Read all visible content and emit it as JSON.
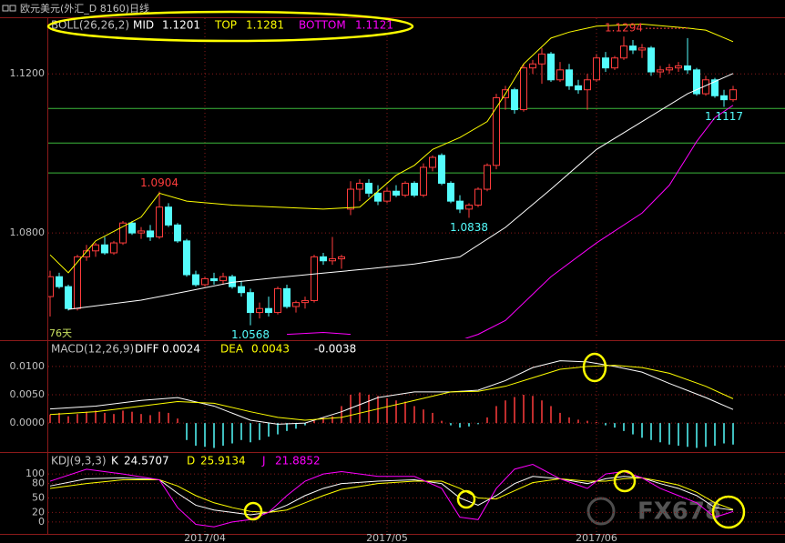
{
  "window_title": "欧元美元(外汇_D 8160)日线",
  "watermark": "FX678",
  "chart_data": [
    {
      "type": "candlestick",
      "indicator": "BOLL(26,26,2)",
      "categories": [
        null,
        null,
        null,
        null,
        null,
        null,
        null,
        null,
        null,
        null,
        null,
        null,
        null,
        null,
        null,
        null,
        null,
        "2017/04",
        null,
        null,
        null,
        null,
        null,
        null,
        null,
        null,
        null,
        null,
        null,
        null,
        null,
        null,
        null,
        null,
        null,
        null,
        null,
        "2017/05",
        null,
        null,
        null,
        null,
        null,
        null,
        null,
        null,
        null,
        null,
        null,
        null,
        null,
        null,
        null,
        null,
        null,
        null,
        null,
        null,
        null,
        null,
        "2017/06",
        null,
        null,
        null,
        null,
        null,
        null,
        null,
        null,
        null,
        null,
        null,
        null,
        null,
        null,
        null
      ],
      "open": [
        1.064,
        1.069,
        1.0665,
        1.061,
        1.074,
        1.0755,
        1.077,
        1.075,
        1.0775,
        1.0825,
        1.08,
        1.0805,
        1.079,
        1.0865,
        1.082,
        1.078,
        1.0695,
        1.067,
        1.0685,
        1.068,
        1.069,
        1.0665,
        1.065,
        1.06,
        1.061,
        1.06,
        1.066,
        1.0615,
        1.0625,
        1.063,
        1.074,
        1.073,
        1.0735,
        1.086,
        1.091,
        1.0925,
        1.09,
        1.088,
        1.0905,
        1.0895,
        1.0925,
        1.0895,
        1.0965,
        1.0995,
        1.0925,
        1.088,
        1.086,
        1.087,
        1.091,
        1.097,
        1.114,
        1.116,
        1.111,
        1.1215,
        1.1225,
        1.125,
        1.1185,
        1.121,
        1.117,
        1.116,
        1.1185,
        1.124,
        1.1215,
        1.124,
        1.127,
        1.126,
        1.1265,
        1.1205,
        1.121,
        1.1215,
        1.122,
        1.121,
        1.115,
        1.1185,
        1.1145,
        1.1135
      ],
      "high": [
        1.0705,
        1.07,
        1.067,
        1.0745,
        1.077,
        1.0775,
        1.079,
        1.078,
        1.083,
        1.083,
        1.0815,
        1.082,
        1.0904,
        1.0875,
        1.0825,
        1.0785,
        1.0705,
        1.069,
        1.07,
        1.07,
        1.0695,
        1.068,
        1.066,
        1.0625,
        1.064,
        1.0665,
        1.067,
        1.063,
        1.064,
        1.0745,
        1.075,
        1.079,
        1.0745,
        1.093,
        1.0935,
        1.0935,
        1.092,
        1.0915,
        1.092,
        1.093,
        1.093,
        1.0975,
        1.0995,
        1.1,
        1.093,
        1.0895,
        1.0875,
        1.0915,
        1.0975,
        1.115,
        1.117,
        1.1165,
        1.1225,
        1.1235,
        1.1265,
        1.1255,
        1.123,
        1.1225,
        1.1185,
        1.12,
        1.125,
        1.1255,
        1.1245,
        1.1294,
        1.1285,
        1.1275,
        1.127,
        1.122,
        1.1225,
        1.123,
        1.129,
        1.1215,
        1.1195,
        1.119,
        1.116,
        1.117
      ],
      "low": [
        1.059,
        1.066,
        1.0605,
        1.0605,
        1.073,
        1.074,
        1.0745,
        1.0745,
        1.077,
        1.0795,
        1.0785,
        1.078,
        1.0785,
        1.0815,
        1.0775,
        1.069,
        1.0665,
        1.0665,
        1.067,
        1.067,
        1.066,
        1.064,
        1.0568,
        1.0585,
        1.059,
        1.0595,
        1.061,
        1.06,
        1.061,
        1.0625,
        1.072,
        1.072,
        1.071,
        1.0845,
        1.088,
        1.089,
        1.087,
        1.0875,
        1.089,
        1.089,
        1.089,
        1.089,
        1.0955,
        1.092,
        1.0875,
        1.085,
        1.0838,
        1.0865,
        1.0905,
        1.096,
        1.111,
        1.11,
        1.1105,
        1.12,
        1.1175,
        1.118,
        1.118,
        1.116,
        1.115,
        1.111,
        1.118,
        1.1205,
        1.121,
        1.1235,
        1.125,
        1.124,
        1.1195,
        1.119,
        1.12,
        1.1205,
        1.12,
        1.1145,
        1.1145,
        1.114,
        1.1117,
        1.113
      ],
      "close": [
        1.069,
        1.0665,
        1.061,
        1.074,
        1.0755,
        1.077,
        1.075,
        1.0775,
        1.0825,
        1.08,
        1.0805,
        1.079,
        1.0865,
        1.082,
        1.078,
        1.0695,
        1.067,
        1.0685,
        1.068,
        1.069,
        1.0665,
        1.065,
        1.06,
        1.061,
        1.06,
        1.066,
        1.0615,
        1.0625,
        1.063,
        1.074,
        1.073,
        1.0735,
        1.074,
        1.091,
        1.0925,
        1.09,
        1.088,
        1.0905,
        1.0895,
        1.0925,
        1.0895,
        1.0965,
        1.099,
        1.0925,
        1.088,
        1.086,
        1.087,
        1.091,
        1.097,
        1.114,
        1.116,
        1.111,
        1.1215,
        1.1225,
        1.125,
        1.1185,
        1.121,
        1.117,
        1.116,
        1.1185,
        1.124,
        1.1215,
        1.124,
        1.127,
        1.126,
        1.1265,
        1.1205,
        1.121,
        1.1215,
        1.122,
        1.121,
        1.115,
        1.1185,
        1.1145,
        1.1135,
        1.116
      ],
      "up_color": "#ff3c3c",
      "down_color": "#54fcfc",
      "series": [
        {
          "name": "MID",
          "color": "#ffffff",
          "x": [
            2,
            10,
            15,
            20,
            25,
            30,
            35,
            40,
            45,
            50,
            55,
            60,
            65,
            70,
            75
          ],
          "values": [
            1.0608,
            1.0631,
            1.0653,
            1.0676,
            1.0688,
            1.0699,
            1.071,
            1.0722,
            1.074,
            1.0814,
            1.091,
            1.101,
            1.108,
            1.115,
            1.1201
          ]
        },
        {
          "name": "TOP",
          "color": "#ffff00",
          "x": [
            0,
            2,
            5,
            10,
            12,
            15,
            20,
            25,
            30,
            34,
            38,
            40,
            42,
            45,
            48,
            50,
            52,
            55,
            57,
            60,
            65,
            70,
            72,
            75
          ],
          "values": [
            1.0745,
            1.07,
            1.078,
            1.084,
            1.09,
            1.088,
            1.087,
            1.0865,
            1.086,
            1.0865,
            1.0945,
            1.097,
            1.101,
            1.104,
            1.108,
            1.115,
            1.1225,
            1.129,
            1.1305,
            1.132,
            1.1325,
            1.1315,
            1.131,
            1.1281
          ]
        },
        {
          "name": "BOTTOM",
          "color": "#ff00ff",
          "x": [
            26,
            30,
            33,
            38,
            45,
            47,
            50,
            55,
            60,
            65,
            68,
            71,
            73,
            75
          ],
          "values": [
            1.0545,
            1.055,
            1.0545,
            null,
            1.053,
            1.0545,
            1.058,
            1.069,
            1.0775,
            1.085,
            1.092,
            1.103,
            1.109,
            1.1121
          ]
        }
      ],
      "hlines": [
        1.1113,
        1.1026,
        1.0951
      ],
      "hline_color": "#3cb83c",
      "annotations": [
        {
          "value": 1.0904
        },
        {
          "value": 1.0568
        },
        {
          "value": 1.0838
        },
        {
          "value": 1.1294
        },
        {
          "value": 1.1117
        }
      ],
      "days_label": "76天",
      "ylim": [
        1.0535,
        1.134
      ],
      "yticks": [
        {
          "value": 1.12,
          "label": "1.1200"
        },
        {
          "value": 1.08,
          "label": "1.0800"
        }
      ],
      "grid": true
    },
    {
      "type": "macd",
      "indicator": "MACD(12,26,9)",
      "series": [
        {
          "name": "DIFF",
          "color": "#ffffff",
          "x": [
            0,
            5,
            10,
            14,
            18,
            22,
            25,
            28,
            32,
            36,
            40,
            44,
            47,
            50,
            53,
            56,
            59,
            62,
            65,
            68,
            72,
            75
          ],
          "values": [
            0.0025,
            0.003,
            0.004,
            0.0045,
            0.003,
            0.0005,
            -0.0002,
            0.0,
            0.002,
            0.0045,
            0.0055,
            0.0055,
            0.0058,
            0.0075,
            0.0098,
            0.011,
            0.0108,
            0.01,
            0.009,
            0.007,
            0.0045,
            0.0024
          ]
        },
        {
          "name": "DEA",
          "color": "#ffff00",
          "x": [
            0,
            5,
            10,
            14,
            18,
            22,
            25,
            28,
            32,
            36,
            40,
            44,
            47,
            50,
            53,
            56,
            59,
            62,
            65,
            68,
            72,
            75
          ],
          "values": [
            0.0015,
            0.002,
            0.003,
            0.0038,
            0.0035,
            0.002,
            0.001,
            0.0005,
            0.001,
            0.0025,
            0.004,
            0.0055,
            0.0056,
            0.0065,
            0.008,
            0.0095,
            0.01,
            0.0102,
            0.0098,
            0.0088,
            0.0065,
            0.0043
          ]
        }
      ],
      "histogram": [
        0.0015,
        0.0018,
        0.0012,
        0.0016,
        0.002,
        0.0022,
        0.0018,
        0.0016,
        0.0022,
        0.002,
        0.0016,
        0.0014,
        0.002,
        0.0018,
        0.0008,
        -0.003,
        -0.004,
        -0.0042,
        -0.0044,
        -0.004,
        -0.0036,
        -0.003,
        -0.0034,
        -0.003,
        -0.0024,
        -0.002,
        -0.0014,
        -0.001,
        -0.0004,
        0.0004,
        0.001,
        0.0012,
        0.003,
        0.005,
        0.0054,
        0.005,
        0.0048,
        0.0044,
        0.004,
        0.0038,
        0.003,
        0.0024,
        0.0018,
        0.0004,
        -0.0004,
        -0.0008,
        -0.0006,
        -0.0002,
        0.001,
        0.003,
        0.004,
        0.0046,
        0.005,
        0.0048,
        0.004,
        0.003,
        0.0018,
        0.001,
        0.0006,
        0.0004,
        0.0002,
        -0.0004,
        -0.0008,
        -0.0014,
        -0.002,
        -0.0026,
        -0.003,
        -0.0034,
        -0.0038,
        -0.004,
        -0.0042,
        -0.0044,
        -0.0042,
        -0.004,
        -0.0036,
        -0.0038
      ],
      "up_color": "#ff3c3c",
      "down_color": "#54fcfc",
      "ylim": [
        -0.0048,
        0.014
      ],
      "yticks": [
        {
          "value": 0.01,
          "label": "0.0100"
        },
        {
          "value": 0.005,
          "label": "0.0050"
        },
        {
          "value": 0,
          "label": "0.0000"
        }
      ],
      "grid": true
    },
    {
      "type": "kdj",
      "indicator": "KDJ(9,3,3)",
      "series": [
        {
          "name": "K",
          "color": "#ffffff",
          "x": [
            0,
            4,
            8,
            12,
            14,
            16,
            18,
            20,
            22,
            24,
            26,
            28,
            30,
            32,
            36,
            40,
            43,
            45,
            47,
            49,
            51,
            53,
            56,
            59,
            61,
            63,
            65,
            67,
            69,
            71,
            73,
            75
          ],
          "values": [
            75,
            90,
            92,
            88,
            60,
            35,
            25,
            20,
            15,
            20,
            35,
            55,
            70,
            80,
            85,
            88,
            80,
            50,
            35,
            55,
            80,
            95,
            90,
            80,
            90,
            95,
            92,
            80,
            70,
            55,
            30,
            24.5707
          ]
        },
        {
          "name": "D",
          "color": "#ffff00",
          "x": [
            0,
            4,
            8,
            12,
            14,
            16,
            18,
            20,
            22,
            24,
            26,
            28,
            30,
            32,
            36,
            40,
            43,
            45,
            47,
            49,
            51,
            53,
            56,
            59,
            61,
            63,
            65,
            67,
            69,
            71,
            73,
            75
          ],
          "values": [
            70,
            80,
            88,
            88,
            75,
            55,
            40,
            30,
            22,
            20,
            25,
            40,
            55,
            68,
            80,
            85,
            85,
            70,
            50,
            48,
            65,
            82,
            90,
            85,
            85,
            90,
            92,
            85,
            77,
            62,
            40,
            25.9134
          ]
        },
        {
          "name": "J",
          "color": "#ff00ff",
          "x": [
            0,
            4,
            8,
            12,
            14,
            16,
            18,
            20,
            22,
            24,
            26,
            28,
            30,
            32,
            36,
            40,
            43,
            45,
            47,
            49,
            51,
            53,
            56,
            59,
            61,
            63,
            65,
            67,
            69,
            71,
            73,
            75
          ],
          "values": [
            85,
            110,
            100,
            88,
            30,
            -5,
            -10,
            0,
            5,
            20,
            55,
            85,
            100,
            105,
            95,
            95,
            70,
            10,
            5,
            70,
            110,
            120,
            90,
            70,
            100,
            105,
            92,
            70,
            55,
            40,
            10,
            21.8852
          ]
        }
      ],
      "ylim": [
        -21,
        140
      ],
      "yticks": [
        0,
        20,
        50,
        80,
        100
      ],
      "grid": true
    }
  ]
}
